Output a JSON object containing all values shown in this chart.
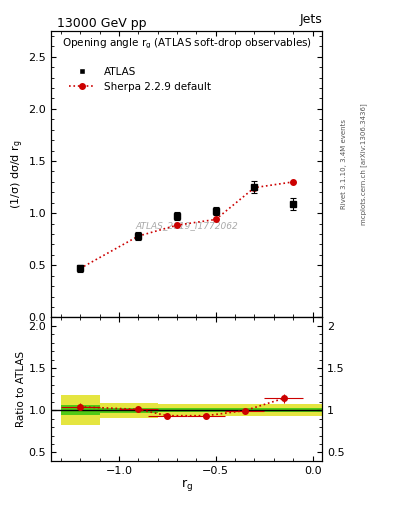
{
  "title": "13000 GeV pp",
  "title_right": "Jets",
  "plot_title": "Opening angle r$_\\mathregular{g}$ (ATLAS soft-drop observables)",
  "xlabel": "r$_\\mathregular{g}$",
  "ylabel_main": "(1/σ) dσ/d r$_\\mathregular{g}$",
  "ylabel_ratio": "Ratio to ATLAS",
  "watermark": "ATLAS_2019_I1772062",
  "rivet_label": "Rivet 3.1.10, 3.4M events",
  "arxiv_label": "mcplots.cern.ch [arXiv:1306.3436]",
  "atlas_x": [
    -1.2,
    -0.9,
    -0.7,
    -0.5,
    -0.3,
    -0.1
  ],
  "atlas_y": [
    0.47,
    0.78,
    0.97,
    1.02,
    1.25,
    1.09
  ],
  "atlas_yerr": [
    0.03,
    0.04,
    0.04,
    0.04,
    0.06,
    0.06
  ],
  "sherpa_x": [
    -1.2,
    -0.9,
    -0.7,
    -0.5,
    -0.3,
    -0.1
  ],
  "sherpa_y": [
    0.47,
    0.78,
    0.885,
    0.94,
    1.245,
    1.3
  ],
  "ratio_x": [
    -1.2,
    -0.9,
    -0.75,
    -0.55,
    -0.35,
    -0.15
  ],
  "ratio_y": [
    1.04,
    1.01,
    0.935,
    0.935,
    0.995,
    1.14
  ],
  "ratio_xerr": [
    0.1,
    0.1,
    0.1,
    0.1,
    0.1,
    0.1
  ],
  "ratio_yerr": [
    0.04,
    0.03,
    0.03,
    0.02,
    0.02,
    0.05
  ],
  "xlim": [
    -1.35,
    0.05
  ],
  "ylim_main": [
    0.0,
    2.75
  ],
  "ylim_ratio": [
    0.4,
    2.1
  ],
  "color_atlas": "#000000",
  "color_sherpa": "#cc0000",
  "color_green": "#00bb00",
  "color_yellow": "#dddd00",
  "band_edges_1": [
    -1.3,
    -1.1
  ],
  "band_edges_2": [
    -1.1,
    -0.8
  ],
  "band_edges_3": [
    -0.8,
    0.05
  ],
  "yellow_lo_1": 0.82,
  "yellow_hi_1": 1.18,
  "yellow_lo_2": 0.91,
  "yellow_hi_2": 1.09,
  "yellow_lo_3": 0.93,
  "yellow_hi_3": 1.07,
  "green_lo_1": 0.94,
  "green_hi_1": 1.06,
  "green_lo_2": 0.97,
  "green_hi_2": 1.03,
  "green_lo_3": 0.975,
  "green_hi_3": 1.025
}
